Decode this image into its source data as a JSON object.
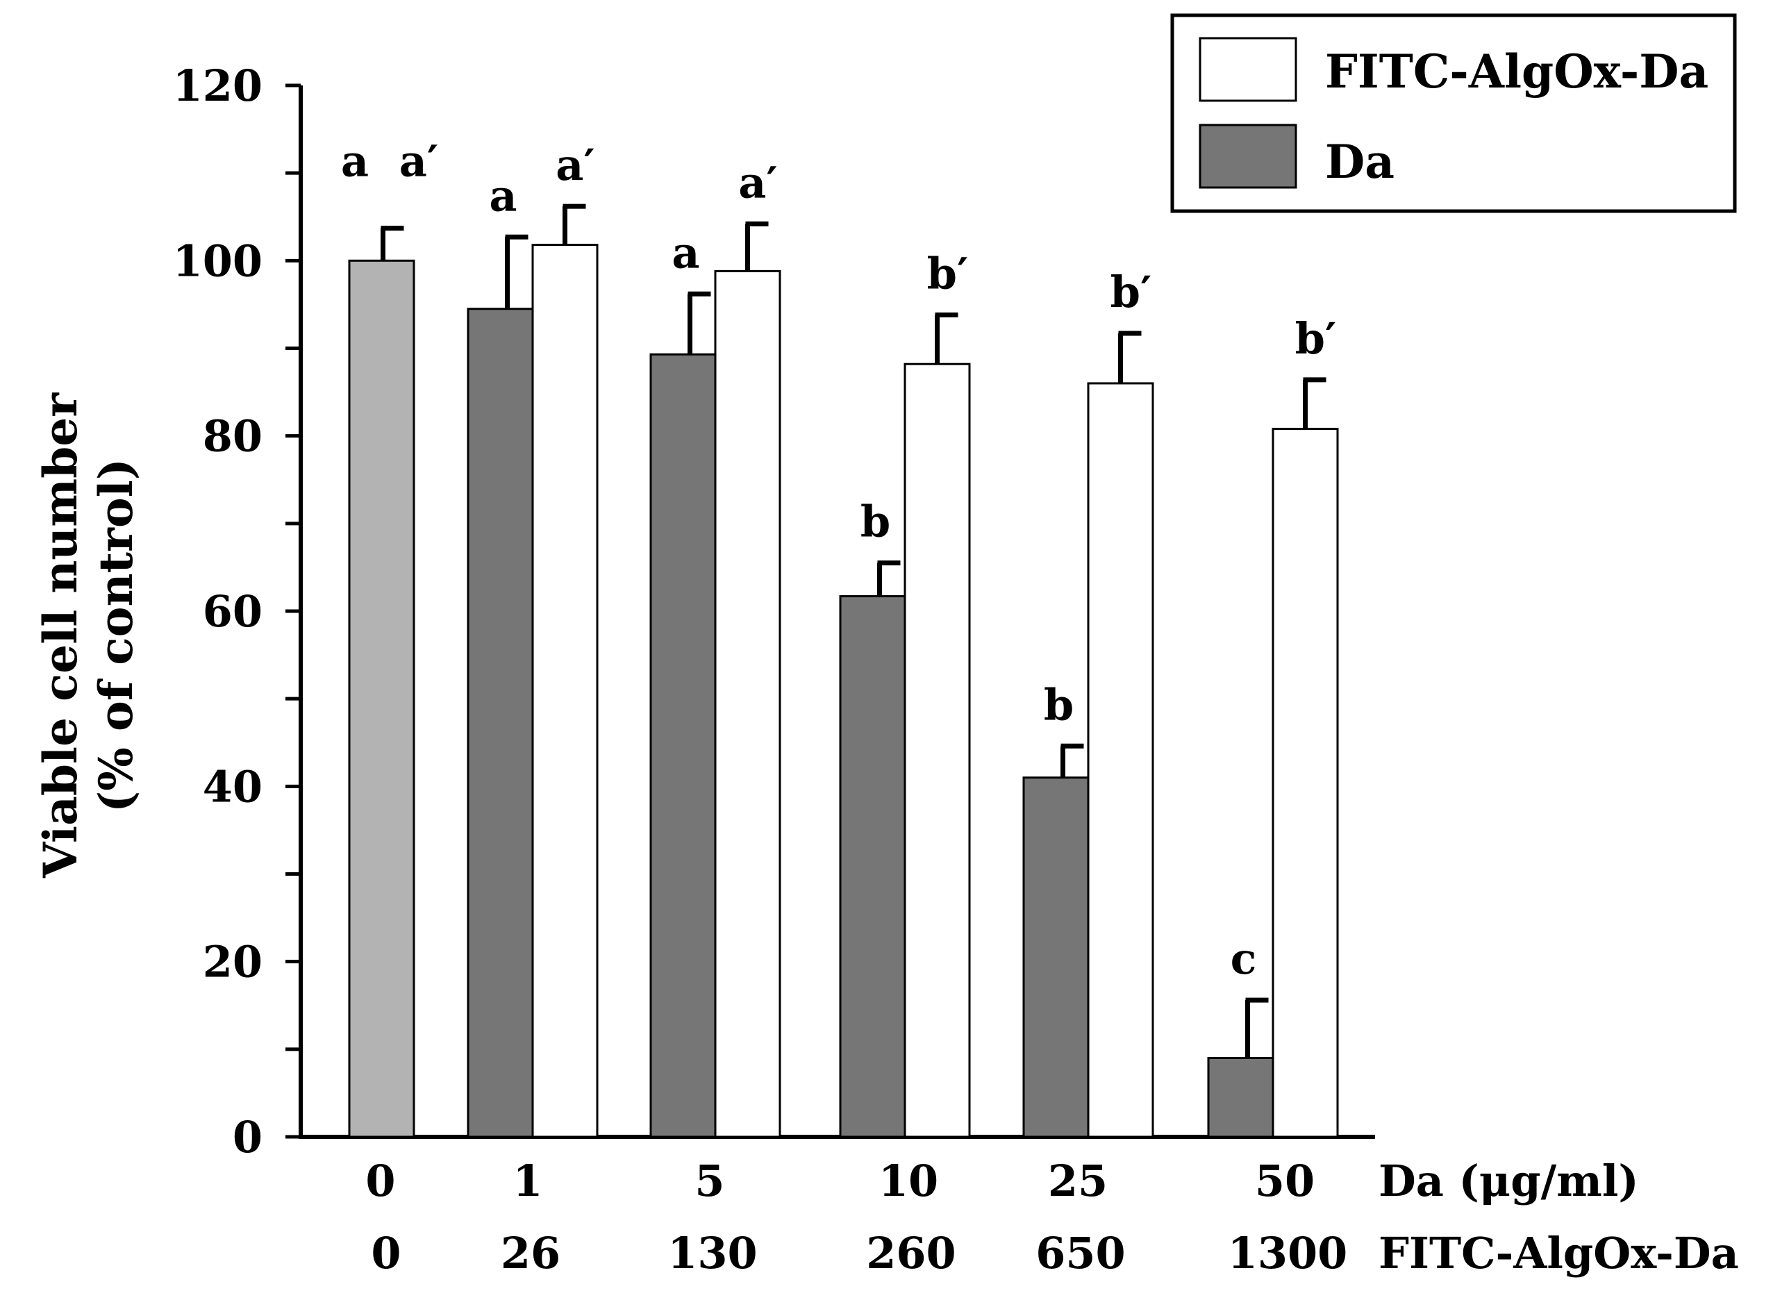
{
  "chart_data": {
    "type": "bar",
    "title": "",
    "ylabel_line1": "Viable cell number",
    "ylabel_line2": "(% of control)",
    "ylim": [
      0,
      120
    ],
    "yticks": [
      0,
      20,
      40,
      60,
      80,
      100,
      120
    ],
    "x_row1_title": "Da (μg/ml)",
    "x_row2_title": "FITC-AlgOx-Da",
    "categories_row1": [
      "0",
      "1",
      "5",
      "10",
      "25",
      "50"
    ],
    "categories_row2": [
      "0",
      "26",
      "130",
      "260",
      "650",
      "1300"
    ],
    "control": {
      "value": 100,
      "error": 3.7,
      "label": "a"
    },
    "series": [
      {
        "name": "Da",
        "color": "#767676",
        "values": [
          null,
          94.5,
          89.3,
          61.7,
          41.0,
          9.0
        ],
        "errors": [
          null,
          8.2,
          6.9,
          3.8,
          3.6,
          6.6
        ],
        "labels": [
          "",
          "a",
          "a",
          "b",
          "b",
          "c"
        ]
      },
      {
        "name": "FITC-AlgOx-Da",
        "color": "#ffffff",
        "values": [
          null,
          101.8,
          98.8,
          88.2,
          86.0,
          80.8
        ],
        "errors": [
          null,
          4.4,
          5.4,
          5.6,
          5.7,
          5.6
        ],
        "labels": [
          "a′",
          "a′",
          "a′",
          "b′",
          "b′",
          "b′"
        ]
      }
    ],
    "control_color": "#b3b3b3",
    "legend": [
      {
        "label": "FITC-AlgOx-Da",
        "color": "#ffffff"
      },
      {
        "label": "Da",
        "color": "#767676"
      }
    ],
    "legend_position": "top-right",
    "grid": false
  }
}
